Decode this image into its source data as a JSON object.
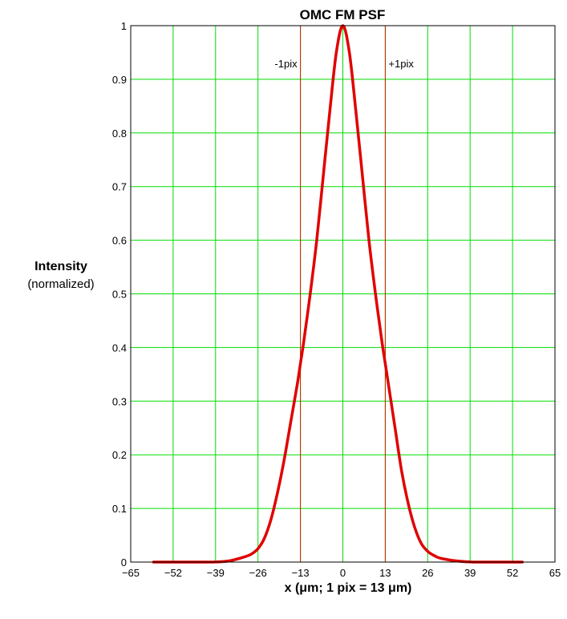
{
  "chart_data": {
    "type": "line",
    "title": "OMC FM PSF",
    "ylabel": "Intensity",
    "ylabel_sub": "(normalized)",
    "xlabel": "x  (μm;  1 pix = 13 μm)",
    "xlim": [
      -65,
      65
    ],
    "ylim": [
      0,
      1
    ],
    "grid": true,
    "x_ticks": [
      -65,
      -52,
      -39,
      -26,
      -13,
      0,
      13,
      26,
      39,
      52,
      65
    ],
    "x_tick_labels": [
      "−65",
      "−52",
      "−39",
      "−26",
      "−13",
      "0",
      "13",
      "26",
      "39",
      "52",
      "65"
    ],
    "y_ticks": [
      0,
      0.1,
      0.2,
      0.3,
      0.4,
      0.5,
      0.6,
      0.7,
      0.8,
      0.9,
      1
    ],
    "y_tick_labels": [
      "0",
      "0.1",
      "0.2",
      "0.3",
      "0.4",
      "0.5",
      "0.6",
      "0.7",
      "0.8",
      "0.9",
      "1"
    ],
    "markers": [
      {
        "x": -13,
        "label": "-1pix"
      },
      {
        "x": 13,
        "label": "+1pix"
      }
    ],
    "series": [
      {
        "color": "#e00000",
        "x": [
          -58,
          -50,
          -45,
          -40,
          -35,
          -30,
          -28,
          -26,
          -24,
          -22,
          -20,
          -18,
          -16,
          -14,
          -13,
          -12,
          -10,
          -8,
          -6,
          -4,
          -2,
          0,
          2,
          4,
          6,
          8,
          10,
          12,
          13,
          14,
          16,
          18,
          20,
          22,
          24,
          26,
          28,
          30,
          35,
          40,
          45,
          50,
          55
        ],
        "y": [
          0.0,
          0.0,
          0.0,
          0.0,
          0.002,
          0.01,
          0.015,
          0.025,
          0.045,
          0.08,
          0.13,
          0.19,
          0.26,
          0.33,
          0.37,
          0.41,
          0.5,
          0.6,
          0.72,
          0.84,
          0.95,
          1.0,
          0.95,
          0.84,
          0.72,
          0.6,
          0.5,
          0.41,
          0.37,
          0.33,
          0.25,
          0.17,
          0.11,
          0.065,
          0.035,
          0.02,
          0.012,
          0.007,
          0.002,
          0.0,
          0.0,
          0.0,
          0.0
        ]
      }
    ],
    "colors": {
      "grid": "#00dd00",
      "marker": "#cc2200",
      "axis": "#000000",
      "curve": "#e00000"
    }
  }
}
